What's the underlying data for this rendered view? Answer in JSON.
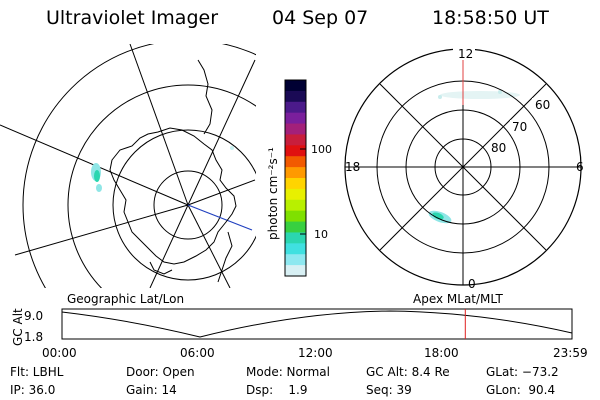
{
  "header": {
    "instrument": "Ultraviolet Imager",
    "date": "04 Sep 07",
    "time": "18:58:50 UT"
  },
  "colorbar": {
    "unit_label": "photon cm⁻²s⁻¹",
    "tick_labels": [
      "100",
      "10"
    ],
    "colors": [
      "#000033",
      "#1a0a55",
      "#4b1a8a",
      "#7a1f9c",
      "#a3207a",
      "#c81e3c",
      "#e01010",
      "#f25a00",
      "#ff9a00",
      "#ffd400",
      "#e8f000",
      "#b8f000",
      "#7fe000",
      "#38d040",
      "#2bd6b0",
      "#40e0e0",
      "#8ee8f0",
      "#d8f0f4"
    ]
  },
  "polar_plot": {
    "mlt_labels": [
      "12",
      "18",
      "6",
      "0"
    ],
    "lat_labels": [
      "60",
      "70",
      "80"
    ],
    "title": "Apex MLat/MLT"
  },
  "geo_plot": {
    "title": "Geographic Lat/Lon"
  },
  "timeline": {
    "ylabel": "GC Alt",
    "y_ticks": [
      "9.0",
      "1.8"
    ],
    "x_ticks": [
      "00:00",
      "06:00",
      "12:00",
      "18:00",
      "23:59"
    ],
    "current_time_hours": 18.98
  },
  "info": {
    "flt_label": "Flt: LBHL",
    "door_label": "Door: Open",
    "mode_label": "Mode: Normal",
    "gcalt_label": "GC Alt: 8.4 Re",
    "glat_label": "GLat: −73.2",
    "ip_label": "IP: 36.0",
    "gain_label": "Gain: 14",
    "dsp_label": "Dsp:    1.9",
    "seq_label": "Seq: 39",
    "glon_label": "GLon:  90.4"
  }
}
